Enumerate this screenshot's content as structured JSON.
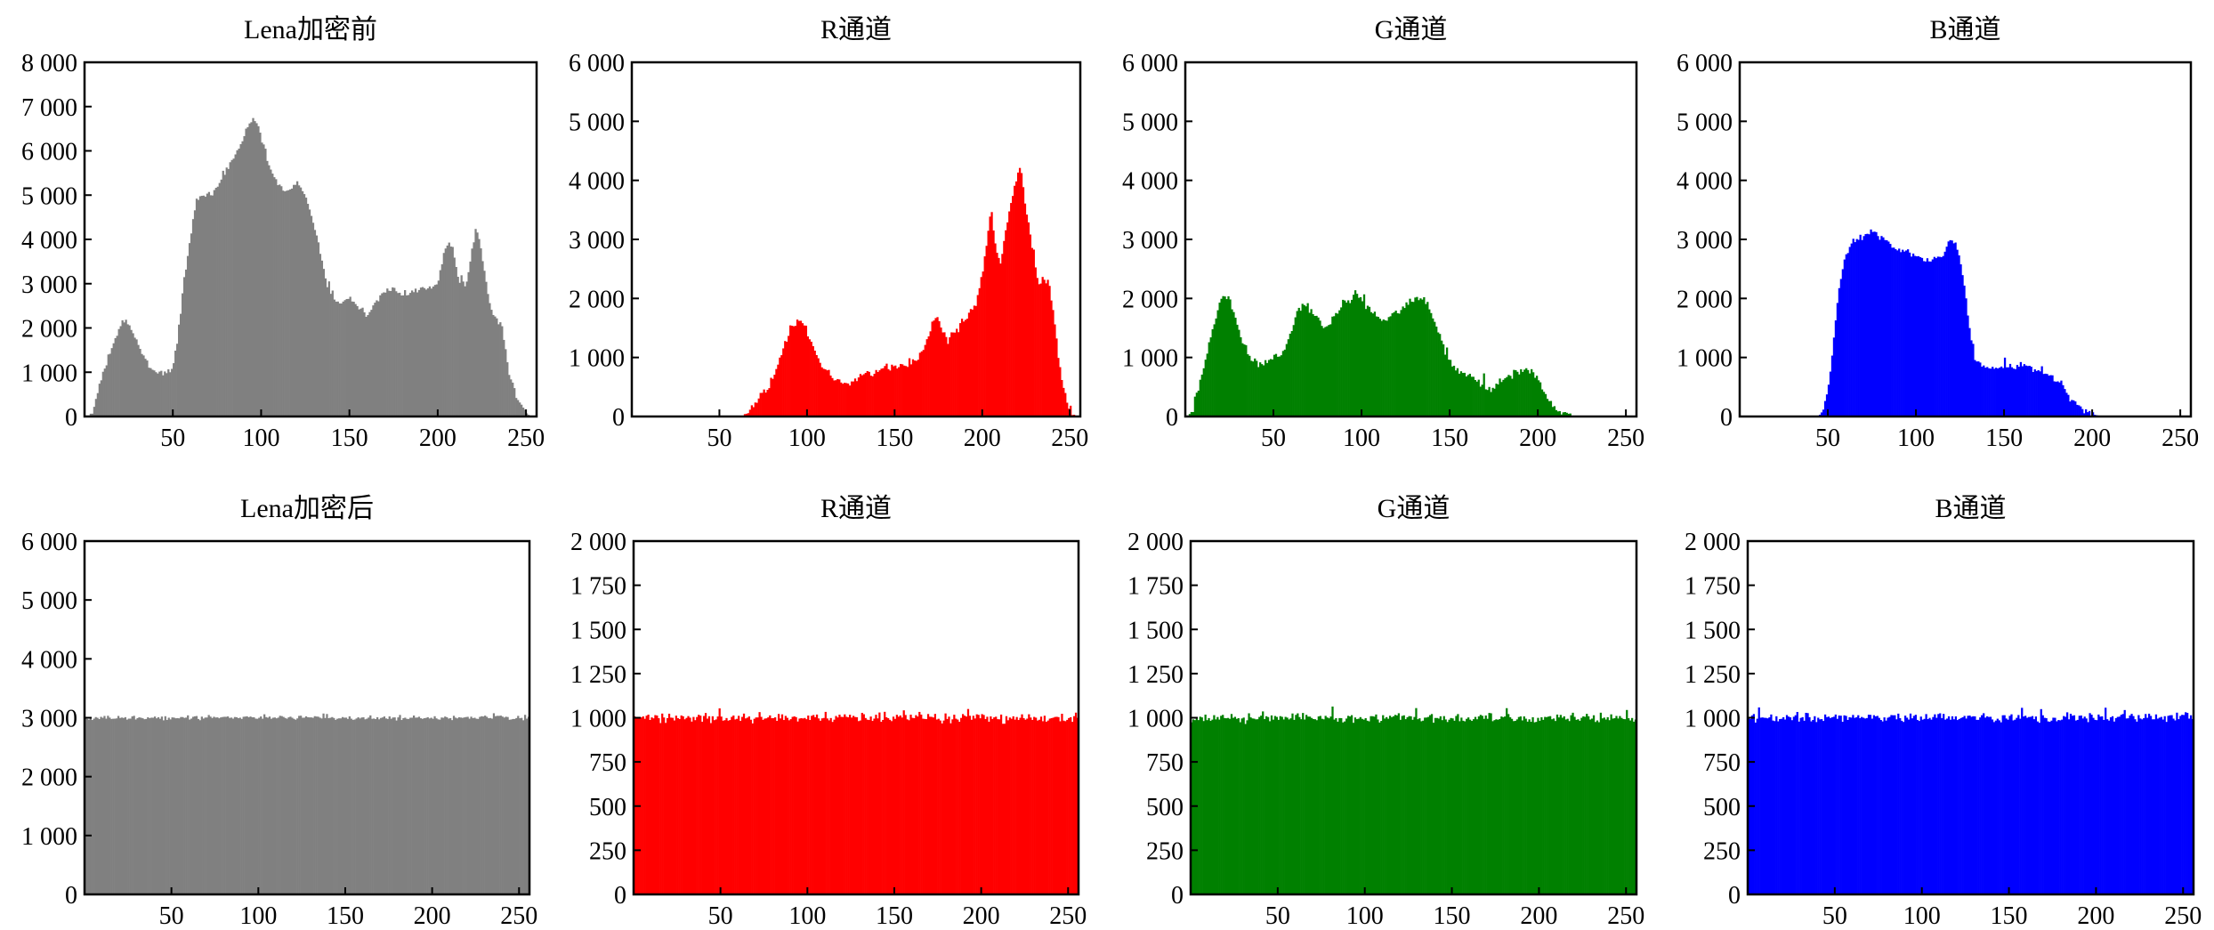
{
  "chart_data": [
    {
      "type": "bar",
      "title": "Lena加密前",
      "color": "#808080",
      "ylim": [
        0,
        8000
      ],
      "yticks": [
        0,
        1000,
        2000,
        3000,
        4000,
        5000,
        6000,
        7000,
        8000
      ],
      "yticklabels": [
        "0",
        "1 000",
        "2 000",
        "3 000",
        "4 000",
        "5 000",
        "6 000",
        "7 000",
        "8 000"
      ],
      "xlim": [
        0,
        256
      ],
      "xticks": [
        50,
        100,
        150,
        200,
        250
      ],
      "xticklabels": [
        "50",
        "100",
        "150",
        "200",
        "250"
      ],
      "profile": [
        [
          0,
          0
        ],
        [
          3,
          0
        ],
        [
          6,
          300
        ],
        [
          10,
          900
        ],
        [
          15,
          1500
        ],
        [
          20,
          2000
        ],
        [
          23,
          2200
        ],
        [
          27,
          1900
        ],
        [
          32,
          1500
        ],
        [
          37,
          1100
        ],
        [
          42,
          1000
        ],
        [
          47,
          1000
        ],
        [
          50,
          1100
        ],
        [
          53,
          1800
        ],
        [
          56,
          3000
        ],
        [
          60,
          4000
        ],
        [
          63,
          4800
        ],
        [
          67,
          5000
        ],
        [
          72,
          5000
        ],
        [
          77,
          5300
        ],
        [
          82,
          5700
        ],
        [
          87,
          6000
        ],
        [
          92,
          6500
        ],
        [
          95,
          6700
        ],
        [
          98,
          6600
        ],
        [
          101,
          6200
        ],
        [
          105,
          5600
        ],
        [
          110,
          5200
        ],
        [
          114,
          5100
        ],
        [
          118,
          5200
        ],
        [
          121,
          5300
        ],
        [
          125,
          5000
        ],
        [
          129,
          4500
        ],
        [
          133,
          3800
        ],
        [
          137,
          3000
        ],
        [
          141,
          2700
        ],
        [
          145,
          2600
        ],
        [
          150,
          2700
        ],
        [
          155,
          2500
        ],
        [
          160,
          2300
        ],
        [
          165,
          2600
        ],
        [
          170,
          2800
        ],
        [
          175,
          2900
        ],
        [
          180,
          2800
        ],
        [
          185,
          2800
        ],
        [
          190,
          2900
        ],
        [
          195,
          2900
        ],
        [
          200,
          3000
        ],
        [
          203,
          3500
        ],
        [
          206,
          4000
        ],
        [
          209,
          3700
        ],
        [
          212,
          3000
        ],
        [
          216,
          3000
        ],
        [
          219,
          3600
        ],
        [
          222,
          4300
        ],
        [
          225,
          3600
        ],
        [
          228,
          2900
        ],
        [
          231,
          2300
        ],
        [
          236,
          2100
        ],
        [
          240,
          1100
        ],
        [
          244,
          500
        ],
        [
          248,
          200
        ],
        [
          252,
          0
        ],
        [
          255,
          0
        ]
      ],
      "noise": 110
    },
    {
      "type": "bar",
      "title": "R通道",
      "color": "#ff0000",
      "ylim": [
        0,
        6000
      ],
      "yticks": [
        0,
        1000,
        2000,
        3000,
        4000,
        5000,
        6000
      ],
      "yticklabels": [
        "0",
        "1 000",
        "2 000",
        "3 000",
        "4 000",
        "5 000",
        "6 000"
      ],
      "xlim": [
        0,
        256
      ],
      "xticks": [
        50,
        100,
        150,
        200,
        250
      ],
      "xticklabels": [
        "50",
        "100",
        "150",
        "200",
        "250"
      ],
      "profile": [
        [
          0,
          0
        ],
        [
          64,
          0
        ],
        [
          68,
          100
        ],
        [
          73,
          300
        ],
        [
          78,
          500
        ],
        [
          83,
          800
        ],
        [
          87,
          1200
        ],
        [
          91,
          1500
        ],
        [
          95,
          1600
        ],
        [
          99,
          1500
        ],
        [
          103,
          1200
        ],
        [
          108,
          900
        ],
        [
          113,
          700
        ],
        [
          118,
          600
        ],
        [
          123,
          550
        ],
        [
          128,
          600
        ],
        [
          133,
          700
        ],
        [
          138,
          750
        ],
        [
          143,
          800
        ],
        [
          148,
          850
        ],
        [
          153,
          850
        ],
        [
          158,
          900
        ],
        [
          162,
          950
        ],
        [
          166,
          1100
        ],
        [
          170,
          1400
        ],
        [
          173,
          1700
        ],
        [
          176,
          1600
        ],
        [
          180,
          1300
        ],
        [
          184,
          1400
        ],
        [
          188,
          1550
        ],
        [
          193,
          1750
        ],
        [
          197,
          1950
        ],
        [
          200,
          2400
        ],
        [
          203,
          3000
        ],
        [
          205,
          3500
        ],
        [
          207,
          3000
        ],
        [
          210,
          2600
        ],
        [
          213,
          3000
        ],
        [
          216,
          3600
        ],
        [
          219,
          3900
        ],
        [
          222,
          4300
        ],
        [
          224,
          3700
        ],
        [
          226,
          3400
        ],
        [
          229,
          2800
        ],
        [
          232,
          2200
        ],
        [
          235,
          2300
        ],
        [
          238,
          2300
        ],
        [
          241,
          1700
        ],
        [
          244,
          900
        ],
        [
          247,
          400
        ],
        [
          250,
          150
        ],
        [
          253,
          0
        ],
        [
          255,
          0
        ]
      ],
      "noise": 110
    },
    {
      "type": "bar",
      "title": "G通道",
      "color": "#008000",
      "ylim": [
        0,
        6000
      ],
      "yticks": [
        0,
        1000,
        2000,
        3000,
        4000,
        5000,
        6000
      ],
      "yticklabels": [
        "0",
        "1 000",
        "2 000",
        "3 000",
        "4 000",
        "5 000",
        "6 000"
      ],
      "xlim": [
        0,
        256
      ],
      "xticks": [
        50,
        100,
        150,
        200,
        250
      ],
      "xticklabels": [
        "50",
        "100",
        "150",
        "200",
        "250"
      ],
      "profile": [
        [
          0,
          0
        ],
        [
          2,
          0
        ],
        [
          5,
          200
        ],
        [
          8,
          500
        ],
        [
          12,
          1000
        ],
        [
          16,
          1500
        ],
        [
          19,
          1900
        ],
        [
          22,
          2100
        ],
        [
          25,
          2000
        ],
        [
          28,
          1700
        ],
        [
          32,
          1300
        ],
        [
          37,
          1000
        ],
        [
          42,
          900
        ],
        [
          47,
          950
        ],
        [
          52,
          1000
        ],
        [
          57,
          1200
        ],
        [
          61,
          1500
        ],
        [
          65,
          1800
        ],
        [
          69,
          1900
        ],
        [
          73,
          1700
        ],
        [
          77,
          1600
        ],
        [
          81,
          1500
        ],
        [
          85,
          1700
        ],
        [
          89,
          1900
        ],
        [
          93,
          2000
        ],
        [
          97,
          2100
        ],
        [
          101,
          1900
        ],
        [
          105,
          1800
        ],
        [
          109,
          1700
        ],
        [
          113,
          1600
        ],
        [
          117,
          1700
        ],
        [
          121,
          1800
        ],
        [
          125,
          1850
        ],
        [
          129,
          1950
        ],
        [
          133,
          2050
        ],
        [
          137,
          1900
        ],
        [
          141,
          1600
        ],
        [
          145,
          1300
        ],
        [
          149,
          1000
        ],
        [
          153,
          850
        ],
        [
          157,
          750
        ],
        [
          161,
          700
        ],
        [
          165,
          600
        ],
        [
          169,
          500
        ],
        [
          173,
          450
        ],
        [
          177,
          500
        ],
        [
          181,
          600
        ],
        [
          185,
          700
        ],
        [
          189,
          750
        ],
        [
          193,
          800
        ],
        [
          197,
          750
        ],
        [
          200,
          600
        ],
        [
          203,
          400
        ],
        [
          206,
          250
        ],
        [
          209,
          150
        ],
        [
          213,
          100
        ],
        [
          217,
          50
        ],
        [
          221,
          0
        ],
        [
          255,
          0
        ]
      ],
      "noise": 110
    },
    {
      "type": "bar",
      "title": "B通道",
      "color": "#0000ff",
      "ylim": [
        0,
        6000
      ],
      "yticks": [
        0,
        1000,
        2000,
        3000,
        4000,
        5000,
        6000
      ],
      "yticklabels": [
        "0",
        "1 000",
        "2 000",
        "3 000",
        "4 000",
        "5 000",
        "6 000"
      ],
      "xlim": [
        0,
        256
      ],
      "xticks": [
        50,
        100,
        150,
        200,
        250
      ],
      "xticklabels": [
        "50",
        "100",
        "150",
        "200",
        "250"
      ],
      "profile": [
        [
          0,
          0
        ],
        [
          45,
          0
        ],
        [
          48,
          200
        ],
        [
          51,
          600
        ],
        [
          54,
          1500
        ],
        [
          57,
          2300
        ],
        [
          60,
          2700
        ],
        [
          63,
          2900
        ],
        [
          66,
          3000
        ],
        [
          69,
          3000
        ],
        [
          72,
          3100
        ],
        [
          75,
          3150
        ],
        [
          78,
          3100
        ],
        [
          82,
          3000
        ],
        [
          86,
          2900
        ],
        [
          90,
          2850
        ],
        [
          95,
          2800
        ],
        [
          100,
          2700
        ],
        [
          105,
          2650
        ],
        [
          110,
          2650
        ],
        [
          115,
          2700
        ],
        [
          118,
          2900
        ],
        [
          121,
          3000
        ],
        [
          124,
          2800
        ],
        [
          127,
          2300
        ],
        [
          130,
          1600
        ],
        [
          133,
          1000
        ],
        [
          137,
          850
        ],
        [
          141,
          800
        ],
        [
          145,
          800
        ],
        [
          150,
          820
        ],
        [
          155,
          860
        ],
        [
          160,
          870
        ],
        [
          165,
          820
        ],
        [
          170,
          760
        ],
        [
          175,
          700
        ],
        [
          180,
          600
        ],
        [
          184,
          500
        ],
        [
          187,
          350
        ],
        [
          190,
          250
        ],
        [
          194,
          150
        ],
        [
          198,
          80
        ],
        [
          202,
          30
        ],
        [
          206,
          0
        ],
        [
          255,
          0
        ]
      ],
      "noise": 90
    },
    {
      "type": "bar",
      "title": "Lena加密后",
      "color": "#808080",
      "ylim": [
        0,
        6000
      ],
      "yticks": [
        0,
        1000,
        2000,
        3000,
        4000,
        5000,
        6000
      ],
      "yticklabels": [
        "0",
        "1 000",
        "2 000",
        "3 000",
        "4 000",
        "5 000",
        "6 000"
      ],
      "xlim": [
        0,
        256
      ],
      "xticks": [
        50,
        100,
        150,
        200,
        250
      ],
      "xticklabels": [
        "50",
        "100",
        "150",
        "200",
        "250"
      ],
      "profile": [
        [
          0,
          3000
        ],
        [
          255,
          3000
        ]
      ],
      "noise": 55
    },
    {
      "type": "bar",
      "title": "R通道",
      "color": "#ff0000",
      "ylim": [
        0,
        2000
      ],
      "yticks": [
        0,
        250,
        500,
        750,
        1000,
        1250,
        1500,
        1750,
        2000
      ],
      "yticklabels": [
        "0",
        "250",
        "500",
        "750",
        "1 000",
        "1 250",
        "1 500",
        "1 750",
        "2 000"
      ],
      "xlim": [
        0,
        256
      ],
      "xticks": [
        50,
        100,
        150,
        200,
        250
      ],
      "xticklabels": [
        "50",
        "100",
        "150",
        "200",
        "250"
      ],
      "profile": [
        [
          0,
          1000
        ],
        [
          255,
          1000
        ]
      ],
      "noise": 40
    },
    {
      "type": "bar",
      "title": "G通道",
      "color": "#008000",
      "ylim": [
        0,
        2000
      ],
      "yticks": [
        0,
        250,
        500,
        750,
        1000,
        1250,
        1500,
        1750,
        2000
      ],
      "yticklabels": [
        "0",
        "250",
        "500",
        "750",
        "1 000",
        "1 250",
        "1 500",
        "1 750",
        "2 000"
      ],
      "xlim": [
        0,
        256
      ],
      "xticks": [
        50,
        100,
        150,
        200,
        250
      ],
      "xticklabels": [
        "50",
        "100",
        "150",
        "200",
        "250"
      ],
      "profile": [
        [
          0,
          1000
        ],
        [
          255,
          1000
        ]
      ],
      "noise": 40
    },
    {
      "type": "bar",
      "title": "B通道",
      "color": "#0000ff",
      "ylim": [
        0,
        2000
      ],
      "yticks": [
        0,
        250,
        500,
        750,
        1000,
        1250,
        1500,
        1750,
        2000
      ],
      "yticklabels": [
        "0",
        "250",
        "500",
        "750",
        "1 000",
        "1 250",
        "1 500",
        "1 750",
        "2 000"
      ],
      "xlim": [
        0,
        256
      ],
      "xticks": [
        50,
        100,
        150,
        200,
        250
      ],
      "xticklabels": [
        "50",
        "100",
        "150",
        "200",
        "250"
      ],
      "profile": [
        [
          0,
          1000
        ],
        [
          255,
          1000
        ]
      ],
      "noise": 40
    }
  ]
}
